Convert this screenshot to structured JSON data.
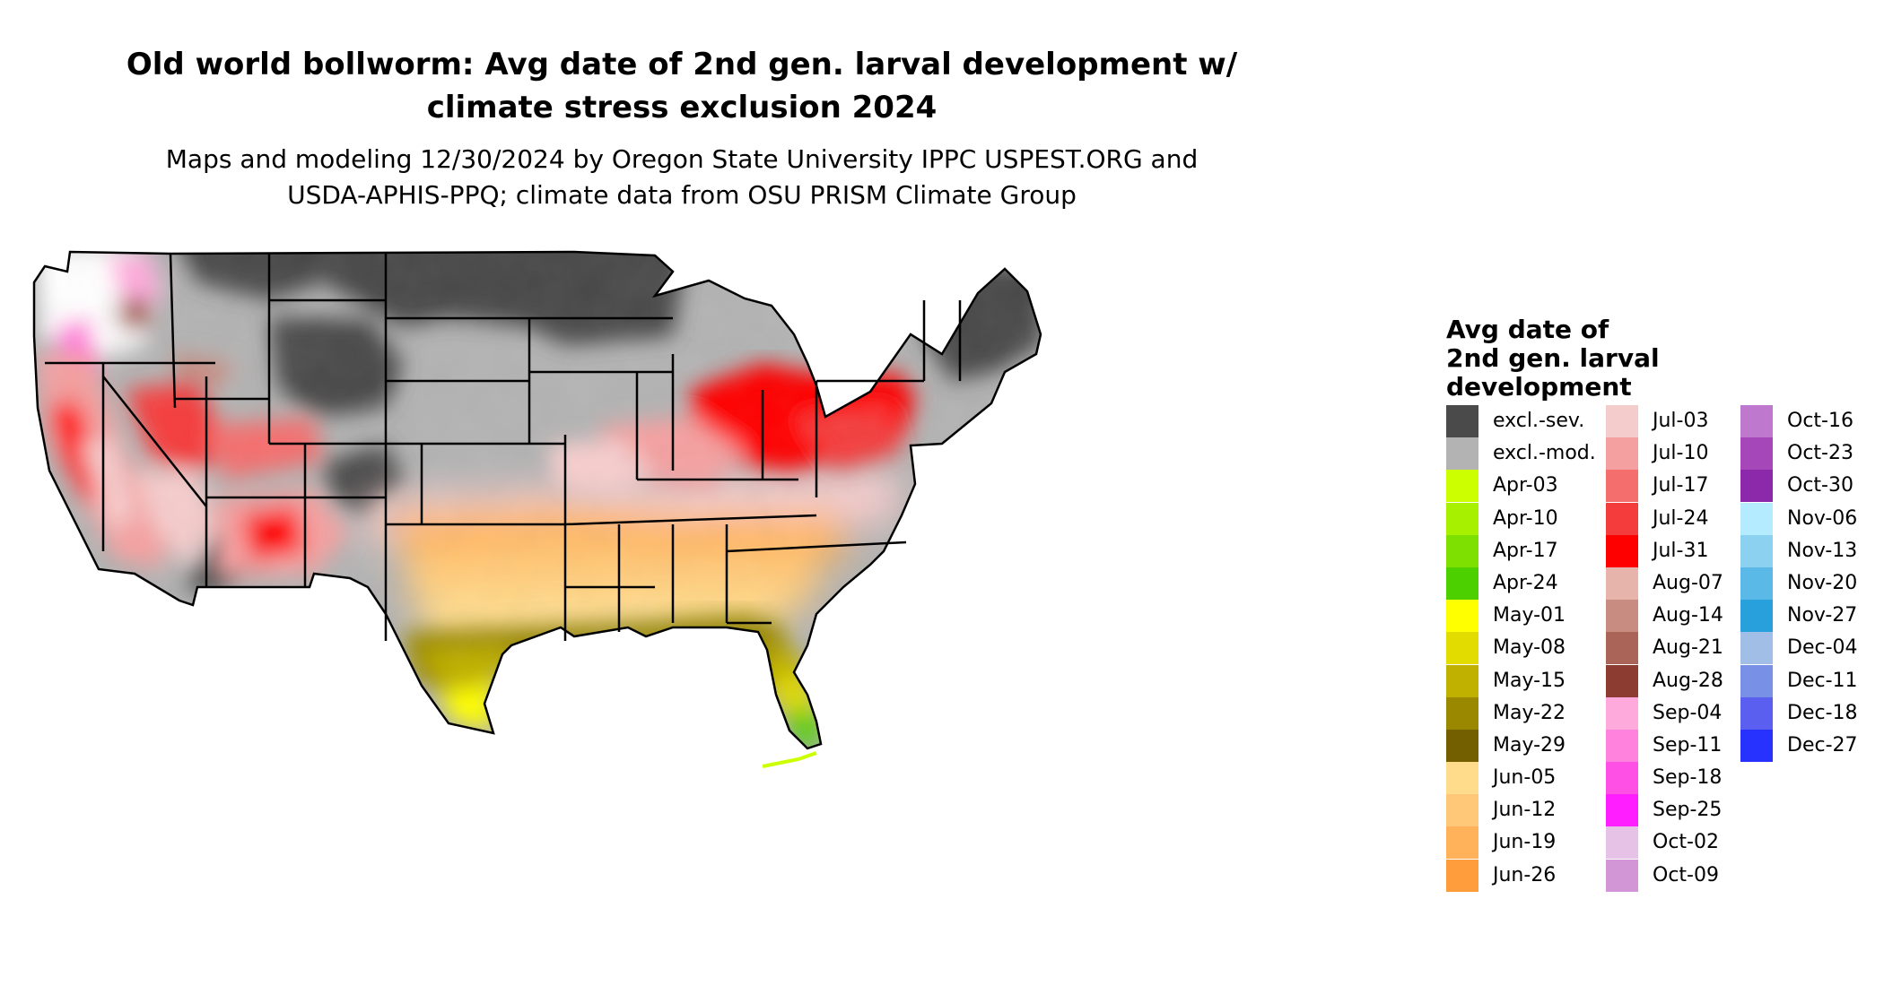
{
  "title_line1": "Old world bollworm: Avg date of 2nd gen. larval development w/",
  "title_line2": "climate stress exclusion 2024",
  "subtitle_line1": "Maps and modeling 12/30/2024 by Oregon State University IPPC USPEST.ORG and",
  "subtitle_line2": "USDA-APHIS-PPQ; climate data from OSU PRISM Climate Group",
  "legend": {
    "title_lines": [
      "Avg date of",
      "2nd gen. larval",
      "development"
    ],
    "columns": [
      [
        {
          "label": "excl.-sev.",
          "color": "#4a4a4a"
        },
        {
          "label": "excl.-mod.",
          "color": "#b3b3b3"
        },
        {
          "label": "Apr-03",
          "color": "#ccff00"
        },
        {
          "label": "Apr-10",
          "color": "#a6f000"
        },
        {
          "label": "Apr-17",
          "color": "#7ee000"
        },
        {
          "label": "Apr-24",
          "color": "#4dd000"
        },
        {
          "label": "May-01",
          "color": "#ffff00"
        },
        {
          "label": "May-08",
          "color": "#e2dc00"
        },
        {
          "label": "May-15",
          "color": "#c0b000"
        },
        {
          "label": "May-22",
          "color": "#9a8800"
        },
        {
          "label": "May-29",
          "color": "#735e00"
        },
        {
          "label": "Jun-05",
          "color": "#ffdc8c"
        },
        {
          "label": "Jun-12",
          "color": "#ffc878"
        },
        {
          "label": "Jun-19",
          "color": "#ffb25a"
        },
        {
          "label": "Jun-26",
          "color": "#ff9c3c"
        }
      ],
      [
        {
          "label": "Jul-03",
          "color": "#f5cccc"
        },
        {
          "label": "Jul-10",
          "color": "#f5a0a0"
        },
        {
          "label": "Jul-17",
          "color": "#f56e6e"
        },
        {
          "label": "Jul-24",
          "color": "#f53c3c"
        },
        {
          "label": "Jul-31",
          "color": "#ff0000"
        },
        {
          "label": "Aug-07",
          "color": "#e6b4aa"
        },
        {
          "label": "Aug-14",
          "color": "#c88c80"
        },
        {
          "label": "Aug-21",
          "color": "#aa6458"
        },
        {
          "label": "Aug-28",
          "color": "#8c3c30"
        },
        {
          "label": "Sep-04",
          "color": "#ffaadc"
        },
        {
          "label": "Sep-11",
          "color": "#ff82dc"
        },
        {
          "label": "Sep-18",
          "color": "#ff50e6"
        },
        {
          "label": "Sep-25",
          "color": "#ff1eff"
        },
        {
          "label": "Oct-02",
          "color": "#e6c3e6"
        },
        {
          "label": "Oct-09",
          "color": "#d296d7"
        }
      ],
      [
        {
          "label": "Oct-16",
          "color": "#be78cd"
        },
        {
          "label": "Oct-23",
          "color": "#a546b9"
        },
        {
          "label": "Oct-30",
          "color": "#8c28aa"
        },
        {
          "label": "Nov-06",
          "color": "#b4ebff"
        },
        {
          "label": "Nov-13",
          "color": "#8cd2f0"
        },
        {
          "label": "Nov-20",
          "color": "#5ab9e6"
        },
        {
          "label": "Nov-27",
          "color": "#28a0dc"
        },
        {
          "label": "Dec-04",
          "color": "#a0bee6"
        },
        {
          "label": "Dec-11",
          "color": "#7891e6"
        },
        {
          "label": "Dec-18",
          "color": "#5a5ff0"
        },
        {
          "label": "Dec-27",
          "color": "#2832ff"
        }
      ]
    ]
  }
}
